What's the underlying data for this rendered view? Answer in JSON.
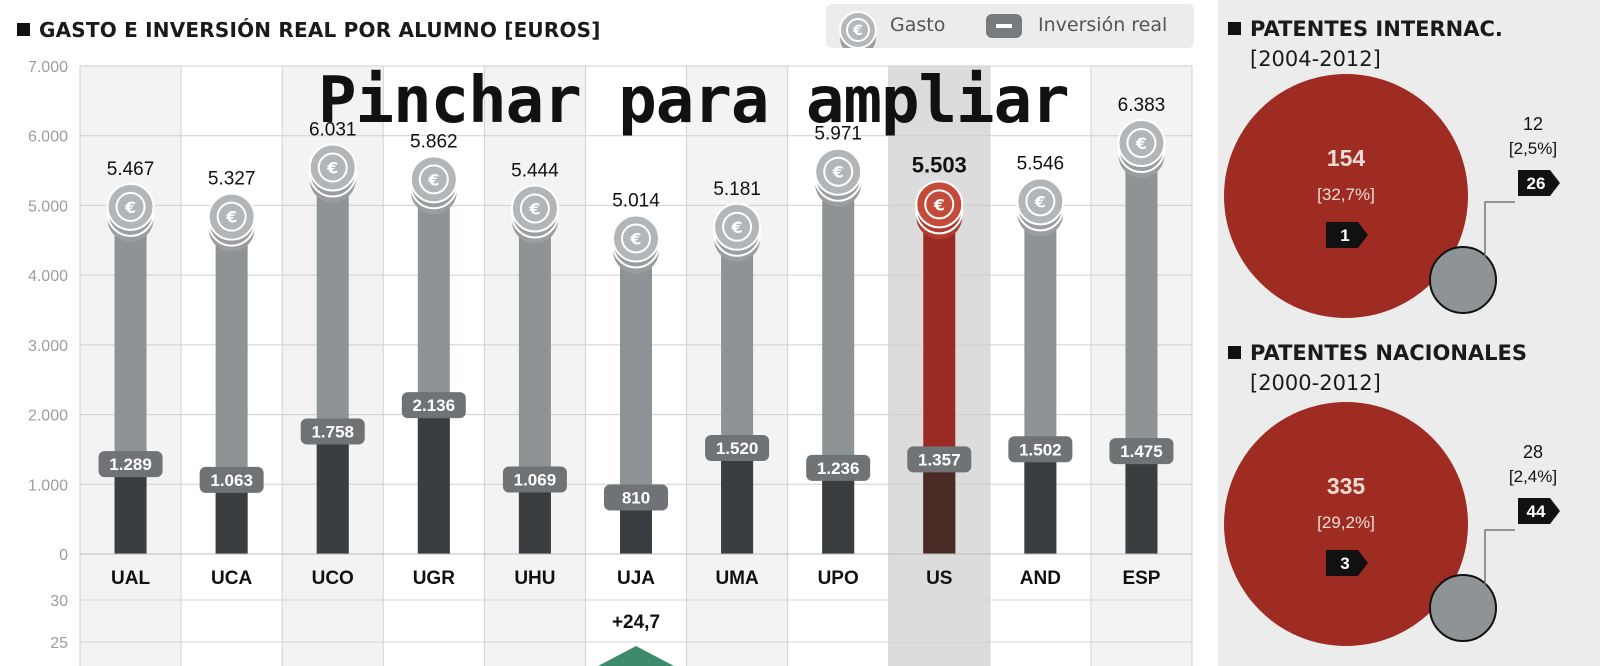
{
  "header": {
    "title": "GASTO E INVERSIÓN REAL POR ALUMNO [EUROS]"
  },
  "legend": {
    "gasto_label": "Gasto",
    "inversion_label": "Inversión real"
  },
  "overlay_text": "Pinchar para ampliar",
  "chart_data": [
    {
      "type": "bar",
      "title": "GASTO E INVERSIÓN REAL POR ALUMNO [EUROS]",
      "categories": [
        "UAL",
        "UCA",
        "UCO",
        "UGR",
        "UHU",
        "UJA",
        "UMA",
        "UPO",
        "US",
        "AND",
        "ESP"
      ],
      "y_ticks": [
        "7.000",
        "6.000",
        "5.000",
        "4.000",
        "3.000",
        "2.000",
        "1.000",
        "0"
      ],
      "ylim": [
        0,
        7000
      ],
      "grid": true,
      "legend_position": "top-right",
      "highlight_category": "US",
      "series": [
        {
          "name": "Gasto",
          "values": [
            5467,
            5327,
            6031,
            5862,
            5444,
            5014,
            5181,
            5971,
            5503,
            5546,
            6383
          ],
          "labels": [
            "5.467",
            "5.327",
            "6.031",
            "5.862",
            "5.444",
            "5.014",
            "5.181",
            "5.971",
            "5.503",
            "5.546",
            "6.383"
          ]
        },
        {
          "name": "Inversión real",
          "values": [
            1289,
            1063,
            1758,
            2136,
            1069,
            810,
            1520,
            1236,
            1357,
            1502,
            1475
          ],
          "labels": [
            "1.289",
            "1.063",
            "1.758",
            "2.136",
            "1.069",
            "810",
            "1.520",
            "1.236",
            "1.357",
            "1.502",
            "1.475"
          ]
        }
      ],
      "colors": {
        "gasto_bar": "#8e9396",
        "inversion_bar": "#3b3e40",
        "highlight_bar": "#9b2a22",
        "highlight_dark": "#4a2a24",
        "coin": "#9a9ea1",
        "coin_highlight": "#b03a2c"
      }
    },
    {
      "type": "bar",
      "y_ticks": [
        "30",
        "25"
      ],
      "annotations": [
        {
          "category": "UJA",
          "label": "+24,7",
          "value": 24.7
        }
      ],
      "colors": {
        "marker": "#3e8a6c"
      }
    }
  ],
  "patents": {
    "international": {
      "title_line1": "PATENTES INTERNAC.",
      "title_line2": "[2004-2012]",
      "big_value": "154",
      "big_pct": "[32,7%]",
      "big_rank": "1",
      "small_value": "12",
      "small_pct": "[2,5%]",
      "small_rank": "26"
    },
    "national": {
      "title_line1": "PATENTES NACIONALES",
      "title_line2": "[2000-2012]",
      "big_value": "335",
      "big_pct": "[29,2%]",
      "big_rank": "3",
      "small_value": "28",
      "small_pct": "[2,4%]",
      "small_rank": "44"
    },
    "colors": {
      "big_circle": "#9e2c22",
      "small_circle": "#8e9396"
    }
  }
}
